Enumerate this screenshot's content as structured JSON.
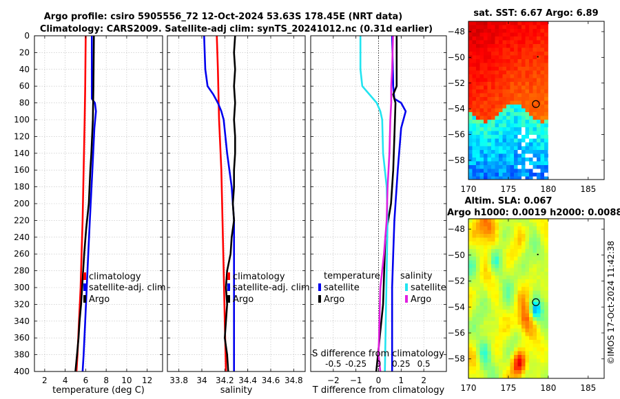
{
  "header": {
    "line1": "Argo profile: csiro 5905556_72 12-Oct-2024 53.63S 178.45E (NRT data)",
    "line2": "Climatology: CARS2009. Satellite-adj clim: synTS_20241012.nc (0.31d earlier)"
  },
  "footer_text": "©IMOS 17-Oct-2024 11:42:38",
  "colors": {
    "climatology": "#ff0000",
    "satellite": "#0000ee",
    "argo": "#000000",
    "salinity_satellite": "#22e4f0",
    "salinity_argo": "#e020e0"
  },
  "chart_data": [
    {
      "type": "line",
      "name": "temperature-profile",
      "xlabel": "temperature (deg C)",
      "ylabel": "",
      "xlim": [
        1,
        13.5
      ],
      "ylim": [
        400,
        0
      ],
      "y_reversed": true,
      "grid": true,
      "xticks": [
        2,
        4,
        6,
        8,
        10,
        12
      ],
      "yticks": [
        0,
        20,
        40,
        60,
        80,
        100,
        120,
        140,
        160,
        180,
        200,
        220,
        240,
        260,
        280,
        300,
        320,
        340,
        360,
        380,
        400
      ],
      "legend": [
        "climatology",
        "satellite-adj. clim",
        "Argo"
      ],
      "legend_placement": "lower-right",
      "series": [
        {
          "name": "climatology",
          "depth": [
            0,
            60,
            100,
            160,
            220,
            260,
            300,
            340,
            380,
            400
          ],
          "values": [
            6.0,
            5.95,
            5.9,
            5.8,
            5.7,
            5.6,
            5.5,
            5.35,
            5.2,
            5.1
          ]
        },
        {
          "name": "satellite-adj. clim",
          "depth": [
            0,
            60,
            75,
            80,
            90,
            110,
            160,
            220,
            260,
            300,
            340,
            380,
            400
          ],
          "values": [
            6.6,
            6.6,
            6.6,
            6.9,
            7.0,
            6.85,
            6.65,
            6.4,
            6.25,
            6.1,
            5.95,
            5.8,
            5.7
          ]
        },
        {
          "name": "Argo",
          "depth": [
            0,
            60,
            100,
            140,
            160,
            200,
            230,
            260,
            280,
            300,
            320,
            340,
            360,
            380,
            400
          ],
          "values": [
            6.8,
            6.75,
            6.7,
            6.55,
            6.45,
            6.3,
            6.05,
            5.85,
            5.75,
            5.65,
            5.55,
            5.4,
            5.3,
            5.15,
            5.0
          ]
        }
      ]
    },
    {
      "type": "line",
      "name": "salinity-profile",
      "xlabel": "salinity",
      "ylabel": "",
      "xlim": [
        33.7,
        34.9
      ],
      "ylim": [
        400,
        0
      ],
      "y_reversed": true,
      "grid": true,
      "xticks": [
        33.8,
        34,
        34.2,
        34.4,
        34.6,
        34.8
      ],
      "legend": [
        "climatology",
        "satellite-adj. clim",
        "Argo"
      ],
      "legend_placement": "lower-right",
      "series": [
        {
          "name": "climatology",
          "depth": [
            0,
            40,
            100,
            160,
            220,
            280,
            340,
            400
          ],
          "values": [
            34.13,
            34.14,
            34.15,
            34.17,
            34.18,
            34.19,
            34.2,
            34.21
          ]
        },
        {
          "name": "satellite-adj. clim",
          "depth": [
            0,
            40,
            60,
            70,
            80,
            90,
            100,
            140,
            180,
            220,
            280,
            340,
            400
          ],
          "values": [
            34.02,
            34.03,
            34.05,
            34.1,
            34.14,
            34.17,
            34.19,
            34.22,
            34.26,
            34.28,
            34.28,
            34.28,
            34.28
          ]
        },
        {
          "name": "Argo",
          "depth": [
            0,
            20,
            40,
            60,
            80,
            100,
            120,
            140,
            160,
            180,
            200,
            220,
            240,
            260,
            280,
            300,
            320,
            340,
            360,
            380,
            400
          ],
          "values": [
            34.29,
            34.28,
            34.29,
            34.28,
            34.29,
            34.28,
            34.29,
            34.29,
            34.28,
            34.28,
            34.27,
            34.28,
            34.26,
            34.25,
            34.22,
            34.21,
            34.22,
            34.21,
            34.2,
            34.22,
            34.23
          ]
        }
      ]
    },
    {
      "type": "line",
      "name": "difference-profile",
      "xlabel": "T difference from climatology",
      "secondary_xlabel": "S difference from climatology",
      "xlim": [
        -3,
        3
      ],
      "ylim": [
        400,
        0
      ],
      "y_reversed": true,
      "grid": true,
      "xticks": [
        -2,
        -1,
        0,
        1,
        2
      ],
      "secondary_xticks": [
        -0.5,
        -0.25,
        0,
        0.25,
        0.5
      ],
      "secondary_tick_labels": [
        "-0.5",
        "-0.25",
        "0",
        "0.25",
        "0.5"
      ],
      "secondary_xlim": [
        -0.75,
        0.75
      ],
      "legend_groups": [
        {
          "title": "temperature",
          "items": [
            "satellite",
            "Argo"
          ]
        },
        {
          "title": "salinity",
          "items": [
            "satellite",
            "Argo"
          ]
        }
      ],
      "series": [
        {
          "name": "temperature satellite",
          "depth": [
            0,
            60,
            75,
            80,
            90,
            110,
            160,
            220,
            260,
            300,
            340,
            380,
            400
          ],
          "values": [
            0.6,
            0.65,
            0.7,
            1.0,
            1.2,
            1.0,
            0.85,
            0.7,
            0.65,
            0.6,
            0.6,
            0.6,
            0.6
          ]
        },
        {
          "name": "temperature Argo",
          "depth": [
            0,
            60,
            70,
            80,
            120,
            160,
            200,
            240,
            280,
            320,
            360,
            400
          ],
          "values": [
            0.8,
            0.8,
            0.65,
            0.75,
            0.7,
            0.65,
            0.55,
            0.3,
            0.25,
            0.2,
            0.05,
            -0.1
          ]
        },
        {
          "name": "salinity satellite",
          "depth": [
            0,
            40,
            60,
            70,
            80,
            90,
            100,
            140,
            180,
            220,
            280,
            340,
            400
          ],
          "values": [
            -0.2,
            -0.2,
            -0.18,
            -0.1,
            -0.02,
            0.02,
            0.04,
            0.05,
            0.09,
            0.1,
            0.09,
            0.08,
            0.07
          ]
        },
        {
          "name": "salinity Argo",
          "depth": [
            0,
            40,
            60,
            80,
            100,
            140,
            180,
            220,
            260,
            300,
            340,
            380,
            400
          ],
          "values": [
            0.16,
            0.15,
            0.14,
            0.14,
            0.13,
            0.12,
            0.1,
            0.09,
            0.06,
            0.02,
            0.01,
            -0.0,
            0.02
          ]
        }
      ]
    },
    {
      "type": "heatmap",
      "name": "sst-map",
      "title": "sat. SST: 6.67 Argo: 6.89",
      "xticks": [
        170,
        175,
        180,
        185
      ],
      "yticks": [
        -48,
        -50,
        -52,
        -54,
        -56,
        -58
      ],
      "xlim": [
        170,
        187
      ],
      "ylim": [
        -59.5,
        -47.2
      ],
      "argo_position": {
        "lon": 178.45,
        "lat": -53.63
      }
    },
    {
      "type": "heatmap",
      "name": "sla-map",
      "title": "Altim. SLA: 0.067",
      "subtitle": "Argo h1000: 0.0019 h2000: 0.0088",
      "xticks": [
        170,
        175,
        180,
        185
      ],
      "yticks": [
        -48,
        -50,
        -52,
        -54,
        -56,
        -58
      ],
      "xlim": [
        170,
        187
      ],
      "ylim": [
        -59.5,
        -47.2
      ],
      "argo_position": {
        "lon": 178.45,
        "lat": -53.63
      }
    }
  ]
}
